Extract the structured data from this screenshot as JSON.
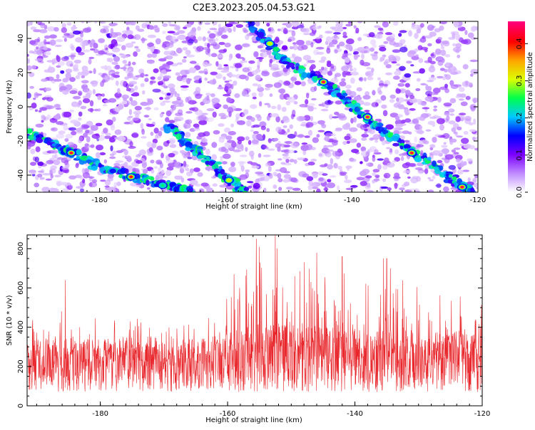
{
  "title": "C2E3.2023.205.04.53.G21",
  "colors": {
    "snr_line": "#e8282d",
    "heatmap_palette": [
      "#ffffff",
      "#c08cff",
      "#7b00ff",
      "#0000ff",
      "#00c8ff",
      "#00ff4c",
      "#dcff00",
      "#ffa500",
      "#ff0000",
      "#ff007f"
    ]
  },
  "chart_data": [
    {
      "type": "heatmap",
      "title": "C2E3.2023.205.04.53.G21",
      "xlabel": "Height of straight line (km)",
      "ylabel": "Frequency (Hz)",
      "xlim": [
        -191.5,
        -120
      ],
      "ylim": [
        -50,
        50
      ],
      "x_ticks": [
        -180,
        -160,
        -140,
        -120
      ],
      "x_tick_labels": [
        "-180",
        "-160",
        "-140",
        "-120"
      ],
      "y_ticks": [
        -40,
        -20,
        0,
        20,
        40
      ],
      "y_tick_labels": [
        "-40",
        "-20",
        "0",
        "20",
        "40"
      ],
      "grid": false,
      "colorbar": {
        "label": "Normalized spectral amplitude",
        "range": [
          0,
          0.46
        ],
        "ticks": [
          0,
          0.1,
          0.2,
          0.3,
          0.4
        ],
        "tick_labels": [
          "0.0",
          "0.1",
          "0.2",
          "0.3",
          "0.4"
        ]
      },
      "ridges": [
        {
          "name": "",
          "points": [
            [
              -191.5,
              -15
            ],
            [
              -186,
              -25
            ],
            [
              -184.5,
              -27
            ],
            [
              -180,
              -35
            ],
            [
              -175,
              -41
            ],
            [
              -172,
              -43
            ],
            [
              -168,
              -47
            ],
            [
              -165,
              -50
            ]
          ]
        },
        {
          "name": "",
          "points": [
            [
              -169,
              -12
            ],
            [
              -166,
              -22
            ],
            [
              -163,
              -30
            ],
            [
              -160,
              -41
            ],
            [
              -158,
              -47
            ],
            [
              -157,
              -50
            ]
          ]
        },
        {
          "name": "",
          "points": [
            [
              -157,
              50
            ],
            [
              -153,
              37
            ],
            [
              -150,
              24
            ],
            [
              -145,
              15
            ],
            [
              -141,
              5
            ],
            [
              -138,
              -6
            ],
            [
              -135,
              -15
            ],
            [
              -130,
              -27
            ],
            [
              -125,
              -40
            ],
            [
              -122,
              -47
            ],
            [
              -121,
              -50
            ]
          ]
        }
      ],
      "hot_spots": [
        {
          "x": -184.5,
          "y": -27,
          "value": 0.44
        },
        {
          "x": -175,
          "y": -41,
          "value": 0.42
        },
        {
          "x": -144.5,
          "y": 14.5,
          "value": 0.45
        },
        {
          "x": -137.5,
          "y": -6,
          "value": 0.46
        },
        {
          "x": -130.5,
          "y": -27,
          "value": 0.44
        },
        {
          "x": -122.5,
          "y": -47,
          "value": 0.45
        },
        {
          "x": -159.5,
          "y": -43,
          "value": 0.3
        },
        {
          "x": -153,
          "y": 37,
          "value": 0.3
        },
        {
          "x": -170,
          "y": -46,
          "value": 0.25
        }
      ]
    },
    {
      "type": "line",
      "xlabel": "Height of straight line (km)",
      "ylabel": "SNR (10 * v/v)",
      "xlim": [
        -191.5,
        -120
      ],
      "ylim": [
        0,
        870
      ],
      "x_ticks": [
        -180,
        -160,
        -140,
        -120
      ],
      "x_tick_labels": [
        "-180",
        "-160",
        "-140",
        "-120"
      ],
      "y_ticks": [
        0,
        200,
        400,
        600,
        800
      ],
      "y_tick_labels": [
        "0",
        "200",
        "400",
        "600",
        "800"
      ],
      "grid": false,
      "series": [
        {
          "name": "",
          "envelope_x": [
            -191.5,
            -188,
            -184,
            -180,
            -176,
            -172,
            -168,
            -164,
            -160,
            -157,
            -155,
            -153,
            -150,
            -147,
            -144,
            -141,
            -138,
            -135,
            -132,
            -129,
            -126,
            -123,
            -120
          ],
          "envelope_max": [
            470,
            520,
            450,
            480,
            430,
            470,
            450,
            420,
            600,
            720,
            870,
            870,
            680,
            760,
            720,
            700,
            680,
            740,
            660,
            600,
            560,
            620,
            560
          ],
          "envelope_typical": [
            230,
            230,
            230,
            225,
            225,
            225,
            225,
            230,
            250,
            270,
            280,
            280,
            275,
            270,
            270,
            265,
            265,
            260,
            260,
            255,
            250,
            245,
            240
          ],
          "envelope_min": [
            40,
            40,
            40,
            40,
            40,
            40,
            40,
            40,
            40,
            40,
            40,
            40,
            40,
            40,
            40,
            40,
            40,
            40,
            40,
            40,
            40,
            40,
            40
          ],
          "notable_peaks": [
            {
              "x": -185.5,
              "y": 640
            },
            {
              "x": -155.5,
              "y": 850
            },
            {
              "x": -155,
              "y": 810
            },
            {
              "x": -152.5,
              "y": 870
            },
            {
              "x": -159,
              "y": 670
            },
            {
              "x": -146,
              "y": 780
            },
            {
              "x": -142,
              "y": 760
            },
            {
              "x": -135.5,
              "y": 750
            },
            {
              "x": -135,
              "y": 750
            }
          ]
        }
      ]
    }
  ]
}
